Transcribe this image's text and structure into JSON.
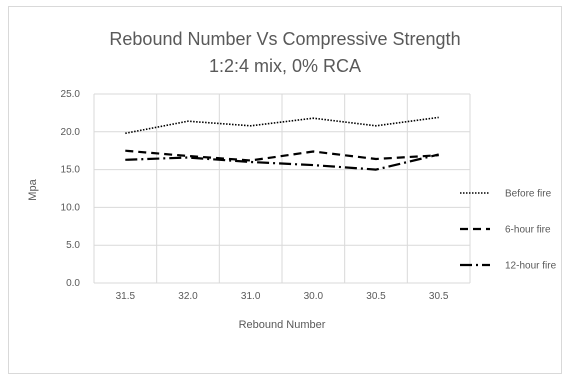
{
  "chart_data": {
    "type": "line",
    "title": "Rebound Number Vs Compressive Strength",
    "subtitle": "1:2:4 mix, 0% RCA",
    "xlabel": "Rebound Number",
    "ylabel": "Mpa",
    "categories": [
      "31.5",
      "32.0",
      "31.0",
      "30.0",
      "30.5",
      "30.5"
    ],
    "ylim": [
      0,
      25
    ],
    "yticks": [
      "0.0",
      "5.0",
      "10.0",
      "15.0",
      "20.0",
      "25.0"
    ],
    "grid": true,
    "legend_position": "right",
    "series": [
      {
        "name": "Before fire",
        "values": [
          19.8,
          21.4,
          20.8,
          21.8,
          20.8,
          21.9
        ],
        "style": "dotted"
      },
      {
        "name": "6-hour fire",
        "values": [
          17.5,
          16.8,
          16.2,
          17.4,
          16.4,
          16.9
        ],
        "style": "dashed"
      },
      {
        "name": "12-hour fire",
        "values": [
          16.3,
          16.6,
          16.0,
          15.6,
          15.0,
          17.0
        ],
        "style": "dash-dot"
      }
    ],
    "colors": {
      "line": "#000000",
      "grid": "#d9d9d9",
      "text": "#595959"
    }
  }
}
